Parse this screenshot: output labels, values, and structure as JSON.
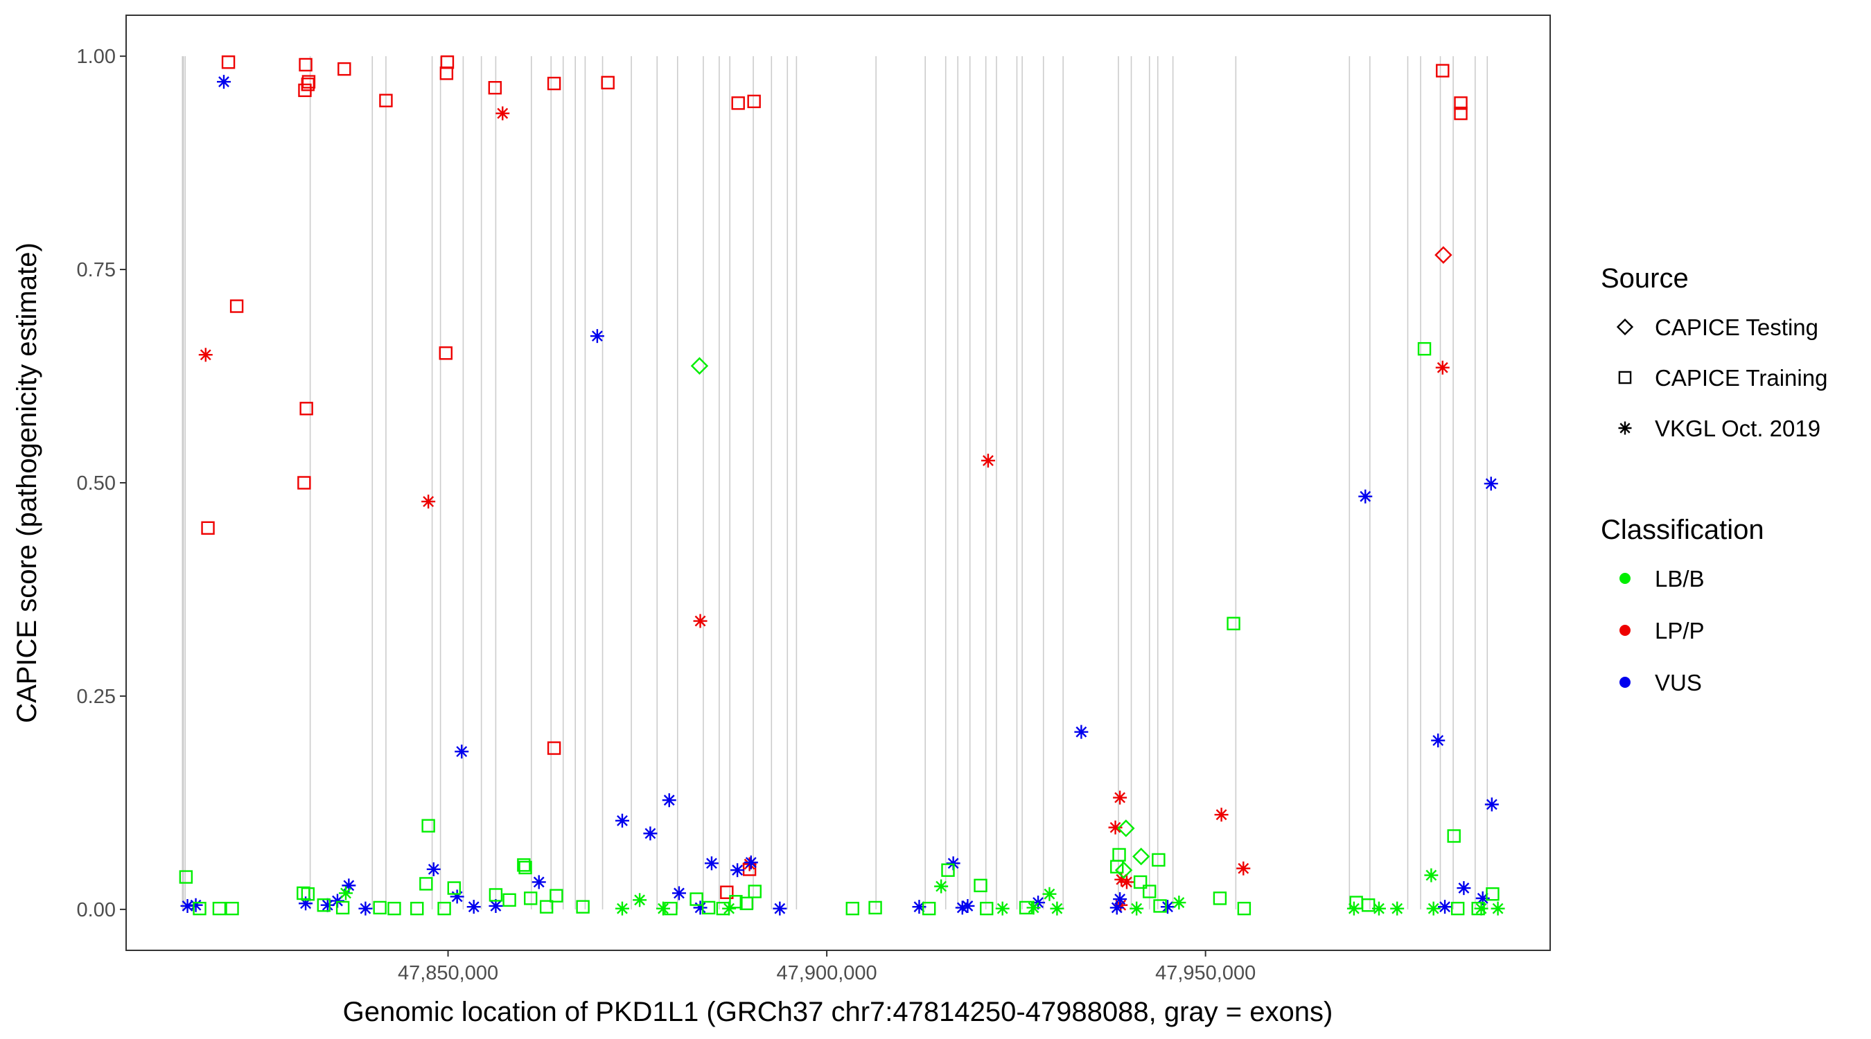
{
  "chart_data": {
    "type": "scatter",
    "title": "",
    "xlabel": "Genomic location of PKD1L1 (GRCh37 chr7:47814250-47988088, gray = exons)",
    "ylabel": "CAPICE score (pathogenicity estimate)",
    "xlim": [
      47807500,
      47995500
    ],
    "ylim": [
      -0.048,
      1.048
    ],
    "x_ticks": [
      47850000,
      47900000,
      47950000
    ],
    "x_tick_labels": [
      "47,850,000",
      "47,900,000",
      "47,950,000"
    ],
    "y_ticks": [
      0,
      0.25,
      0.5,
      0.75,
      1.0
    ],
    "y_tick_labels": [
      "0.00",
      "0.25",
      "0.50",
      "0.75",
      "1.00"
    ],
    "exons": [
      47815000,
      47815300,
      47831800,
      47840000,
      47841800,
      47847900,
      47849000,
      47852000,
      47854400,
      47856300,
      47861000,
      47863600,
      47865200,
      47866800,
      47868100,
      47870400,
      47874200,
      47877600,
      47880300,
      47883700,
      47885800,
      47887200,
      47890300,
      47892700,
      47894800,
      47896000,
      47906500,
      47913000,
      47915700,
      47917300,
      47918900,
      47921000,
      47922400,
      47925100,
      47925800,
      47928600,
      47931200,
      47938500,
      47940200,
      47942600,
      47943700,
      47945700,
      47954000,
      47969000,
      47971700,
      47976700,
      47978400,
      47981000,
      47982700,
      47985600,
      47987200
    ],
    "legend": {
      "source_title": "Source",
      "source_items": [
        {
          "label": "CAPICE Testing",
          "shape": "diamond"
        },
        {
          "label": "CAPICE Training",
          "shape": "square"
        },
        {
          "label": "VKGL Oct. 2019",
          "shape": "asterisk"
        }
      ],
      "class_title": "Classification",
      "class_items": [
        {
          "label": "LB/B",
          "color": "#00ee00"
        },
        {
          "label": "LP/P",
          "color": "#ee0000"
        },
        {
          "label": "VUS",
          "color": "#0000ee"
        }
      ]
    },
    "colors": {
      "LB/B": "#00ee00",
      "LP/P": "#ee0000",
      "VUS": "#0000ee"
    },
    "series": [
      {
        "name": "CAPICE Training / LP/P",
        "source": "CAPICE Training",
        "class": "LP/P",
        "points": [
          [
            47821000,
            0.993
          ],
          [
            47831200,
            0.99
          ],
          [
            47831600,
            0.97
          ],
          [
            47831100,
            0.96
          ],
          [
            47831500,
            0.967
          ],
          [
            47836300,
            0.985
          ],
          [
            47841800,
            0.948
          ],
          [
            47849900,
            0.993
          ],
          [
            47849800,
            0.98
          ],
          [
            47856200,
            0.963
          ],
          [
            47864000,
            0.968
          ],
          [
            47871100,
            0.969
          ],
          [
            47888300,
            0.945
          ],
          [
            47890400,
            0.947
          ],
          [
            47822100,
            0.707
          ],
          [
            47831300,
            0.587
          ],
          [
            47831000,
            0.5
          ],
          [
            47818300,
            0.447
          ],
          [
            47849700,
            0.652
          ],
          [
            47864000,
            0.189
          ],
          [
            47886800,
            0.02
          ],
          [
            47889800,
            0.047
          ],
          [
            47981300,
            0.983
          ],
          [
            47983700,
            0.945
          ],
          [
            47983700,
            0.933
          ]
        ]
      },
      {
        "name": "CAPICE Testing / LP/P",
        "source": "CAPICE Testing",
        "class": "LP/P",
        "points": [
          [
            47981400,
            0.767
          ]
        ]
      },
      {
        "name": "VKGL Oct. 2019 / LP/P",
        "source": "VKGL Oct. 2019",
        "class": "LP/P",
        "points": [
          [
            47818000,
            0.65
          ],
          [
            47857200,
            0.933
          ],
          [
            47847400,
            0.478
          ],
          [
            47883300,
            0.338
          ],
          [
            47889800,
            0.053
          ],
          [
            47921300,
            0.526
          ],
          [
            47938700,
            0.131
          ],
          [
            47938100,
            0.096
          ],
          [
            47938900,
            0.035
          ],
          [
            47939600,
            0.032
          ],
          [
            47938800,
            0.005
          ],
          [
            47952100,
            0.111
          ],
          [
            47955000,
            0.048
          ],
          [
            47981300,
            0.635
          ]
        ]
      },
      {
        "name": "VKGL Oct. 2019 / VUS",
        "source": "VKGL Oct. 2019",
        "class": "VUS",
        "points": [
          [
            47820400,
            0.97
          ],
          [
            47815600,
            0.004
          ],
          [
            47816700,
            0.005
          ],
          [
            47831200,
            0.007
          ],
          [
            47834100,
            0.005
          ],
          [
            47836900,
            0.028
          ],
          [
            47835400,
            0.01
          ],
          [
            47839100,
            0.001
          ],
          [
            47848100,
            0.047
          ],
          [
            47851800,
            0.185
          ],
          [
            47851200,
            0.015
          ],
          [
            47853400,
            0.003
          ],
          [
            47856300,
            0.004
          ],
          [
            47862000,
            0.032
          ],
          [
            47869700,
            0.672
          ],
          [
            47873000,
            0.104
          ],
          [
            47876700,
            0.089
          ],
          [
            47879200,
            0.128
          ],
          [
            47880500,
            0.019
          ],
          [
            47883300,
            0.002
          ],
          [
            47884800,
            0.054
          ],
          [
            47888200,
            0.046
          ],
          [
            47890000,
            0.055
          ],
          [
            47893800,
            0.001
          ],
          [
            47912200,
            0.003
          ],
          [
            47916700,
            0.054
          ],
          [
            47917900,
            0.002
          ],
          [
            47918600,
            0.004
          ],
          [
            47927900,
            0.008
          ],
          [
            47933600,
            0.208
          ],
          [
            47938700,
            0.012
          ],
          [
            47938300,
            0.002
          ],
          [
            47945000,
            0.003
          ],
          [
            47971100,
            0.484
          ],
          [
            47980700,
            0.198
          ],
          [
            47981600,
            0.003
          ],
          [
            47984100,
            0.025
          ],
          [
            47986600,
            0.013
          ],
          [
            47987700,
            0.499
          ],
          [
            47987800,
            0.123
          ]
        ]
      },
      {
        "name": "CAPICE Training / LB/B",
        "source": "CAPICE Training",
        "class": "LB/B",
        "points": [
          [
            47815400,
            0.038
          ],
          [
            47817200,
            0.001
          ],
          [
            47819800,
            0.001
          ],
          [
            47821500,
            0.001
          ],
          [
            47830900,
            0.019
          ],
          [
            47831500,
            0.018
          ],
          [
            47833600,
            0.005
          ],
          [
            47836100,
            0.002
          ],
          [
            47841000,
            0.002
          ],
          [
            47842900,
            0.001
          ],
          [
            47845900,
            0.001
          ],
          [
            47847400,
            0.098
          ],
          [
            47847100,
            0.03
          ],
          [
            47849500,
            0.001
          ],
          [
            47850800,
            0.025
          ],
          [
            47856300,
            0.017
          ],
          [
            47858100,
            0.011
          ],
          [
            47860000,
            0.052
          ],
          [
            47860200,
            0.049
          ],
          [
            47860900,
            0.013
          ],
          [
            47863000,
            0.003
          ],
          [
            47864300,
            0.016
          ],
          [
            47867800,
            0.003
          ],
          [
            47879400,
            0.001
          ],
          [
            47882800,
            0.012
          ],
          [
            47884400,
            0.002
          ],
          [
            47886300,
            0.001
          ],
          [
            47888000,
            0.009
          ],
          [
            47889400,
            0.007
          ],
          [
            47890500,
            0.021
          ],
          [
            47903400,
            0.001
          ],
          [
            47906400,
            0.002
          ],
          [
            47913500,
            0.001
          ],
          [
            47916000,
            0.046
          ],
          [
            47920300,
            0.028
          ],
          [
            47921100,
            0.001
          ],
          [
            47926300,
            0.002
          ],
          [
            47938300,
            0.05
          ],
          [
            47938600,
            0.064
          ],
          [
            47941400,
            0.032
          ],
          [
            47942600,
            0.021
          ],
          [
            47943800,
            0.058
          ],
          [
            47944000,
            0.004
          ],
          [
            47951900,
            0.013
          ],
          [
            47953700,
            0.335
          ],
          [
            47955100,
            0.001
          ],
          [
            47969900,
            0.008
          ],
          [
            47971500,
            0.005
          ],
          [
            47978900,
            0.657
          ],
          [
            47982800,
            0.086
          ],
          [
            47983300,
            0.001
          ],
          [
            47986000,
            0.001
          ],
          [
            47987900,
            0.018
          ]
        ]
      },
      {
        "name": "CAPICE Testing / LB/B",
        "source": "CAPICE Testing",
        "class": "LB/B",
        "points": [
          [
            47883200,
            0.637
          ],
          [
            47939500,
            0.095
          ],
          [
            47941500,
            0.062
          ],
          [
            47939200,
            0.046
          ]
        ]
      },
      {
        "name": "VKGL Oct. 2019 / LB/B",
        "source": "VKGL Oct. 2019",
        "class": "LB/B",
        "points": [
          [
            47836500,
            0.019
          ],
          [
            47873000,
            0.001
          ],
          [
            47875300,
            0.011
          ],
          [
            47878400,
            0.001
          ],
          [
            47887100,
            0.001
          ],
          [
            47915100,
            0.027
          ],
          [
            47923200,
            0.001
          ],
          [
            47927300,
            0.002
          ],
          [
            47929400,
            0.018
          ],
          [
            47930400,
            0.001
          ],
          [
            47940900,
            0.001
          ],
          [
            47946500,
            0.008
          ],
          [
            47969600,
            0.001
          ],
          [
            47972900,
            0.001
          ],
          [
            47975300,
            0.001
          ],
          [
            47979800,
            0.04
          ],
          [
            47980100,
            0.001
          ],
          [
            47986400,
            0.001
          ],
          [
            47988600,
            0.001
          ]
        ]
      }
    ]
  }
}
